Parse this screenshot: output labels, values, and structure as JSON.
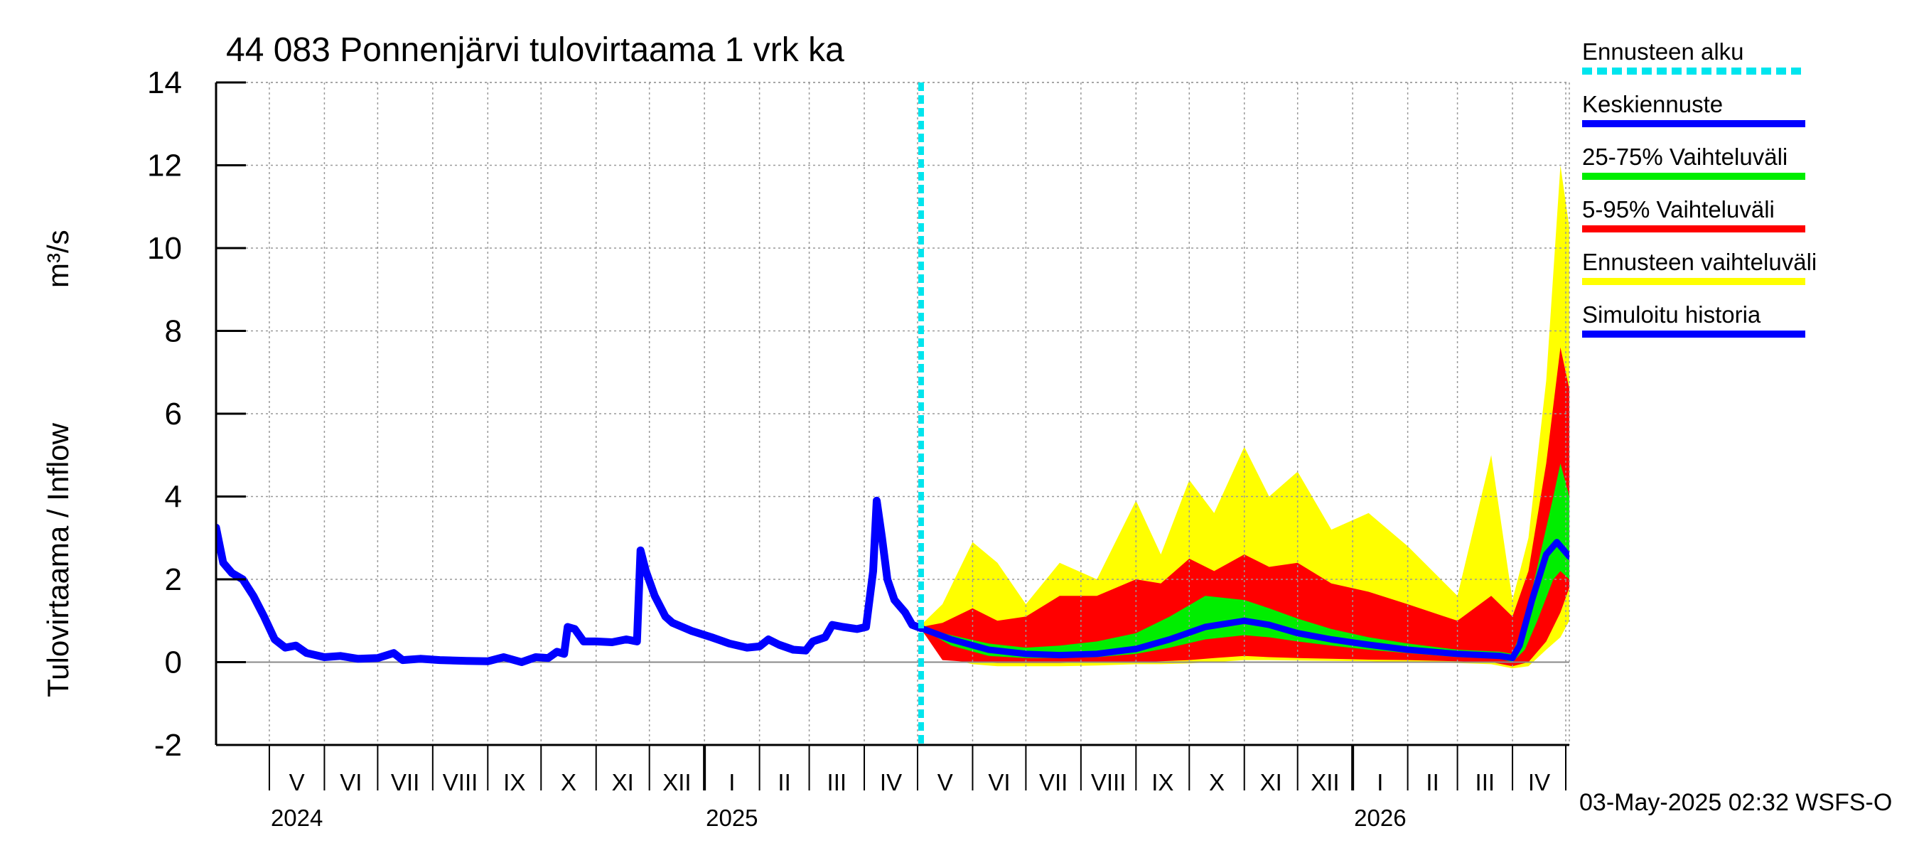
{
  "chart_data": {
    "type": "area",
    "title": "44 083 Ponnenjärvi tulovirtaama 1 vrk ka",
    "ylabel": "Tulovirtaama / Inflow",
    "yunit": "m³/s",
    "ylim": [
      -2,
      14
    ],
    "yticks": [
      -2,
      0,
      2,
      4,
      6,
      8,
      10,
      12,
      14
    ],
    "xlim": [
      "2024-04-01",
      "2026-05-03"
    ],
    "grid": true,
    "forecast_start": "2025-05-03",
    "months": [
      {
        "label": "V",
        "start": "2024-05-01",
        "end": "2024-06-01"
      },
      {
        "label": "VI",
        "start": "2024-06-01",
        "end": "2024-07-01"
      },
      {
        "label": "VII",
        "start": "2024-07-01",
        "end": "2024-08-01"
      },
      {
        "label": "VIII",
        "start": "2024-08-01",
        "end": "2024-09-01"
      },
      {
        "label": "IX",
        "start": "2024-09-01",
        "end": "2024-10-01"
      },
      {
        "label": "X",
        "start": "2024-10-01",
        "end": "2024-11-01"
      },
      {
        "label": "XI",
        "start": "2024-11-01",
        "end": "2024-12-01"
      },
      {
        "label": "XII",
        "start": "2024-12-01",
        "end": "2025-01-01"
      },
      {
        "label": "I",
        "start": "2025-01-01",
        "end": "2025-02-01"
      },
      {
        "label": "II",
        "start": "2025-02-01",
        "end": "2025-03-01"
      },
      {
        "label": "III",
        "start": "2025-03-01",
        "end": "2025-04-01"
      },
      {
        "label": "IV",
        "start": "2025-04-01",
        "end": "2025-05-01"
      },
      {
        "label": "V",
        "start": "2025-05-01",
        "end": "2025-06-01"
      },
      {
        "label": "VI",
        "start": "2025-06-01",
        "end": "2025-07-01"
      },
      {
        "label": "VII",
        "start": "2025-07-01",
        "end": "2025-08-01"
      },
      {
        "label": "VIII",
        "start": "2025-08-01",
        "end": "2025-09-01"
      },
      {
        "label": "IX",
        "start": "2025-09-01",
        "end": "2025-10-01"
      },
      {
        "label": "X",
        "start": "2025-10-01",
        "end": "2025-11-01"
      },
      {
        "label": "XI",
        "start": "2025-11-01",
        "end": "2025-12-01"
      },
      {
        "label": "XII",
        "start": "2025-12-01",
        "end": "2026-01-01"
      },
      {
        "label": "I",
        "start": "2026-01-01",
        "end": "2026-02-01"
      },
      {
        "label": "II",
        "start": "2026-02-01",
        "end": "2026-03-01"
      },
      {
        "label": "III",
        "start": "2026-03-01",
        "end": "2026-04-01"
      },
      {
        "label": "IV",
        "start": "2026-04-01",
        "end": "2026-05-01"
      }
    ],
    "years": [
      {
        "label": "2024",
        "date": "2024-05-01"
      },
      {
        "label": "2025",
        "date": "2025-01-01"
      },
      {
        "label": "2026",
        "date": "2026-01-01"
      }
    ],
    "legend_placement": "right",
    "legend": [
      {
        "label": "Ennusteen alku",
        "color": "#00e5ee",
        "style": "dashed"
      },
      {
        "label": "Keskiennuste",
        "color": "#0000ff",
        "style": "solid"
      },
      {
        "label": "25-75% Vaihteluväli",
        "color": "#00ee00",
        "style": "solid"
      },
      {
        "label": "5-95% Vaihteluväli",
        "color": "#ff0000",
        "style": "solid"
      },
      {
        "label": "Ennusteen vaihteluväli",
        "color": "#ffff00",
        "style": "solid"
      },
      {
        "label": "Simuloitu historia",
        "color": "#0000ff",
        "style": "solid"
      }
    ],
    "series": [
      {
        "name": "Simuloitu historia",
        "color": "#0000ff",
        "points": [
          [
            "2024-04-01",
            3.25
          ],
          [
            "2024-04-05",
            2.4
          ],
          [
            "2024-04-10",
            2.15
          ],
          [
            "2024-04-16",
            2.0
          ],
          [
            "2024-04-22",
            1.6
          ],
          [
            "2024-04-28",
            1.1
          ],
          [
            "2024-05-04",
            0.55
          ],
          [
            "2024-05-10",
            0.35
          ],
          [
            "2024-05-16",
            0.4
          ],
          [
            "2024-05-22",
            0.22
          ],
          [
            "2024-06-01",
            0.12
          ],
          [
            "2024-06-10",
            0.15
          ],
          [
            "2024-06-20",
            0.08
          ],
          [
            "2024-07-01",
            0.1
          ],
          [
            "2024-07-10",
            0.22
          ],
          [
            "2024-07-15",
            0.05
          ],
          [
            "2024-07-25",
            0.08
          ],
          [
            "2024-08-05",
            0.05
          ],
          [
            "2024-08-20",
            0.03
          ],
          [
            "2024-09-01",
            0.02
          ],
          [
            "2024-09-10",
            0.12
          ],
          [
            "2024-09-20",
            0.0
          ],
          [
            "2024-09-28",
            0.12
          ],
          [
            "2024-10-05",
            0.1
          ],
          [
            "2024-10-10",
            0.25
          ],
          [
            "2024-10-14",
            0.2
          ],
          [
            "2024-10-16",
            0.85
          ],
          [
            "2024-10-20",
            0.8
          ],
          [
            "2024-10-25",
            0.5
          ],
          [
            "2024-11-01",
            0.5
          ],
          [
            "2024-11-10",
            0.48
          ],
          [
            "2024-11-18",
            0.55
          ],
          [
            "2024-11-24",
            0.5
          ],
          [
            "2024-11-26",
            2.7
          ],
          [
            "2024-11-29",
            2.2
          ],
          [
            "2024-12-04",
            1.6
          ],
          [
            "2024-12-10",
            1.1
          ],
          [
            "2024-12-14",
            0.95
          ],
          [
            "2024-12-25",
            0.75
          ],
          [
            "2025-01-05",
            0.6
          ],
          [
            "2025-01-15",
            0.45
          ],
          [
            "2025-01-25",
            0.35
          ],
          [
            "2025-02-01",
            0.38
          ],
          [
            "2025-02-06",
            0.55
          ],
          [
            "2025-02-12",
            0.42
          ],
          [
            "2025-02-20",
            0.3
          ],
          [
            "2025-02-27",
            0.28
          ],
          [
            "2025-03-03",
            0.5
          ],
          [
            "2025-03-10",
            0.6
          ],
          [
            "2025-03-14",
            0.9
          ],
          [
            "2025-03-20",
            0.85
          ],
          [
            "2025-03-28",
            0.8
          ],
          [
            "2025-04-02",
            0.85
          ],
          [
            "2025-04-06",
            2.2
          ],
          [
            "2025-04-08",
            3.9
          ],
          [
            "2025-04-11",
            3.0
          ],
          [
            "2025-04-14",
            2.0
          ],
          [
            "2025-04-18",
            1.5
          ],
          [
            "2025-04-24",
            1.2
          ],
          [
            "2025-04-28",
            0.9
          ],
          [
            "2025-05-03",
            0.82
          ]
        ]
      },
      {
        "name": "Keskiennuste",
        "color": "#0000ff",
        "points": [
          [
            "2025-05-03",
            0.82
          ],
          [
            "2025-05-20",
            0.55
          ],
          [
            "2025-06-10",
            0.3
          ],
          [
            "2025-07-01",
            0.2
          ],
          [
            "2025-07-20",
            0.17
          ],
          [
            "2025-08-10",
            0.2
          ],
          [
            "2025-09-01",
            0.32
          ],
          [
            "2025-09-20",
            0.55
          ],
          [
            "2025-10-10",
            0.85
          ],
          [
            "2025-11-01",
            1.0
          ],
          [
            "2025-11-15",
            0.9
          ],
          [
            "2025-12-01",
            0.7
          ],
          [
            "2025-12-20",
            0.55
          ],
          [
            "2026-01-10",
            0.42
          ],
          [
            "2026-02-01",
            0.3
          ],
          [
            "2026-03-01",
            0.2
          ],
          [
            "2026-03-25",
            0.15
          ],
          [
            "2026-04-01",
            0.1
          ],
          [
            "2026-04-05",
            0.4
          ],
          [
            "2026-04-12",
            1.5
          ],
          [
            "2026-04-20",
            2.6
          ],
          [
            "2026-04-26",
            2.9
          ],
          [
            "2026-05-03",
            2.55
          ]
        ]
      }
    ],
    "bands": [
      {
        "name": "Ennusteen vaihteluväli",
        "color": "#ffff00",
        "points": [
          [
            "2025-05-03",
            0.78,
            0.9
          ],
          [
            "2025-05-15",
            0.12,
            1.4
          ],
          [
            "2025-06-01",
            -0.05,
            2.9
          ],
          [
            "2025-06-15",
            -0.1,
            2.4
          ],
          [
            "2025-07-01",
            -0.1,
            1.4
          ],
          [
            "2025-07-20",
            -0.1,
            2.4
          ],
          [
            "2025-08-10",
            -0.08,
            2.0
          ],
          [
            "2025-09-01",
            -0.05,
            3.9
          ],
          [
            "2025-09-15",
            -0.05,
            2.6
          ],
          [
            "2025-10-01",
            -0.03,
            4.4
          ],
          [
            "2025-10-15",
            0.0,
            3.6
          ],
          [
            "2025-11-01",
            0.05,
            5.2
          ],
          [
            "2025-11-15",
            0.05,
            4.0
          ],
          [
            "2025-12-01",
            0.04,
            4.6
          ],
          [
            "2025-12-20",
            0.03,
            3.2
          ],
          [
            "2026-01-10",
            0.02,
            3.6
          ],
          [
            "2026-02-01",
            0.0,
            2.8
          ],
          [
            "2026-03-01",
            -0.02,
            1.6
          ],
          [
            "2026-03-20",
            -0.05,
            5.0
          ],
          [
            "2026-04-01",
            -0.15,
            1.5
          ],
          [
            "2026-04-10",
            -0.1,
            3.0
          ],
          [
            "2026-04-20",
            0.3,
            6.8
          ],
          [
            "2026-04-28",
            0.6,
            12.0
          ],
          [
            "2026-05-03",
            1.0,
            10.5
          ]
        ]
      },
      {
        "name": "5-95% Vaihteluväli",
        "color": "#ff0000",
        "points": [
          [
            "2025-05-03",
            0.8,
            0.85
          ],
          [
            "2025-05-15",
            0.05,
            0.95
          ],
          [
            "2025-06-01",
            0.0,
            1.3
          ],
          [
            "2025-06-15",
            -0.02,
            1.0
          ],
          [
            "2025-07-01",
            -0.02,
            1.1
          ],
          [
            "2025-07-20",
            -0.02,
            1.6
          ],
          [
            "2025-08-10",
            0.0,
            1.6
          ],
          [
            "2025-09-01",
            0.0,
            2.0
          ],
          [
            "2025-09-15",
            0.02,
            1.9
          ],
          [
            "2025-10-01",
            0.05,
            2.5
          ],
          [
            "2025-10-15",
            0.1,
            2.2
          ],
          [
            "2025-11-01",
            0.15,
            2.6
          ],
          [
            "2025-11-15",
            0.12,
            2.3
          ],
          [
            "2025-12-01",
            0.1,
            2.4
          ],
          [
            "2025-12-20",
            0.08,
            1.9
          ],
          [
            "2026-01-10",
            0.06,
            1.7
          ],
          [
            "2026-02-01",
            0.05,
            1.4
          ],
          [
            "2026-03-01",
            0.02,
            1.0
          ],
          [
            "2026-03-20",
            0.0,
            1.6
          ],
          [
            "2026-04-01",
            -0.1,
            1.1
          ],
          [
            "2026-04-10",
            0.0,
            2.2
          ],
          [
            "2026-04-20",
            0.5,
            4.8
          ],
          [
            "2026-04-28",
            1.2,
            7.6
          ],
          [
            "2026-05-03",
            1.8,
            6.6
          ]
        ]
      },
      {
        "name": "25-75% Vaihteluväli",
        "color": "#00ee00",
        "points": [
          [
            "2025-05-03",
            0.81,
            0.84
          ],
          [
            "2025-05-20",
            0.4,
            0.65
          ],
          [
            "2025-06-10",
            0.15,
            0.45
          ],
          [
            "2025-07-01",
            0.1,
            0.35
          ],
          [
            "2025-07-20",
            0.1,
            0.4
          ],
          [
            "2025-08-10",
            0.12,
            0.5
          ],
          [
            "2025-09-01",
            0.2,
            0.7
          ],
          [
            "2025-09-20",
            0.35,
            1.1
          ],
          [
            "2025-10-10",
            0.55,
            1.6
          ],
          [
            "2025-11-01",
            0.65,
            1.5
          ],
          [
            "2025-11-15",
            0.6,
            1.3
          ],
          [
            "2025-12-01",
            0.5,
            1.05
          ],
          [
            "2025-12-20",
            0.4,
            0.8
          ],
          [
            "2026-01-10",
            0.3,
            0.6
          ],
          [
            "2026-02-01",
            0.22,
            0.45
          ],
          [
            "2026-03-01",
            0.12,
            0.3
          ],
          [
            "2026-03-25",
            0.08,
            0.25
          ],
          [
            "2026-04-01",
            0.0,
            0.2
          ],
          [
            "2026-04-08",
            0.3,
            1.0
          ],
          [
            "2026-04-15",
            1.0,
            2.3
          ],
          [
            "2026-04-24",
            2.0,
            4.0
          ],
          [
            "2026-04-28",
            2.2,
            4.8
          ],
          [
            "2026-05-03",
            2.0,
            4.0
          ]
        ]
      }
    ]
  },
  "footer": {
    "timestamp": "03-May-2025 02:32 WSFS-O"
  }
}
